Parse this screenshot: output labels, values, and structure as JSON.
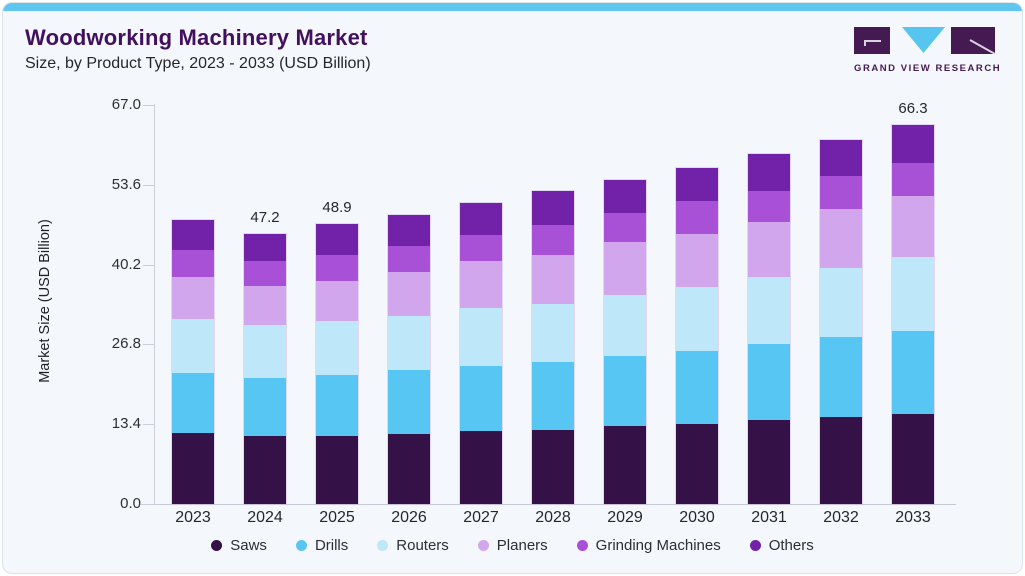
{
  "header": {
    "title": "Woodworking Machinery Market",
    "subtitle": "Size, by Product Type, 2023 - 2033 (USD Billion)"
  },
  "logo": {
    "text": "GRAND VIEW RESEARCH",
    "block_color": "#451a53",
    "triangle_color": "#56c5f0"
  },
  "chart_data": {
    "type": "bar",
    "stacked": true,
    "title": "Woodworking Machinery Market Size, by Product Type, 2023 - 2033 (USD Billion)",
    "xlabel": "",
    "ylabel": "Market Size (USD Billion)",
    "ylim": [
      0,
      67
    ],
    "grid": false,
    "legend_position": "bottom",
    "yticks": [
      "0.0",
      "13.4",
      "26.8",
      "40.2",
      "53.6",
      "67.0"
    ],
    "categories": [
      "2023",
      "2024",
      "2025",
      "2026",
      "2027",
      "2028",
      "2029",
      "2030",
      "2031",
      "2032",
      "2033"
    ],
    "series": [
      {
        "name": "Saws",
        "color": "#341247",
        "values": [
          12.4,
          11.8,
          11.9,
          12.3,
          12.7,
          13.0,
          13.6,
          14.0,
          14.6,
          15.2,
          15.8
        ]
      },
      {
        "name": "Drills",
        "color": "#58c6f2",
        "values": [
          10.5,
          10.2,
          10.7,
          11.1,
          11.5,
          11.9,
          12.3,
          12.8,
          13.3,
          14.0,
          14.5
        ]
      },
      {
        "name": "Routers",
        "color": "#bfe7fa",
        "values": [
          9.4,
          9.3,
          9.4,
          9.4,
          10.0,
          10.1,
          10.7,
          11.1,
          11.8,
          12.1,
          12.8
        ]
      },
      {
        "name": "Planers",
        "color": "#d2a6ec",
        "values": [
          7.3,
          6.8,
          7.0,
          7.7,
          8.2,
          8.6,
          9.2,
          9.3,
          9.6,
          10.2,
          10.8
        ]
      },
      {
        "name": "Grinding Machines",
        "color": "#a851d6",
        "values": [
          4.8,
          4.4,
          4.5,
          4.6,
          4.7,
          5.1,
          5.0,
          5.8,
          5.5,
          5.8,
          5.8
        ]
      },
      {
        "name": "Others",
        "color": "#7222a8",
        "values": [
          5.2,
          4.7,
          5.4,
          5.5,
          5.5,
          6.0,
          5.9,
          5.8,
          6.4,
          6.3,
          6.6
        ]
      }
    ],
    "bar_totals": [
      49.6,
      47.2,
      48.9,
      50.6,
      52.6,
      54.7,
      56.7,
      58.8,
      61.2,
      63.6,
      66.3
    ],
    "bar_labels": [
      "",
      "47.2",
      "48.9",
      "",
      "",
      "",
      "",
      "",
      "",
      "",
      "66.3"
    ]
  }
}
